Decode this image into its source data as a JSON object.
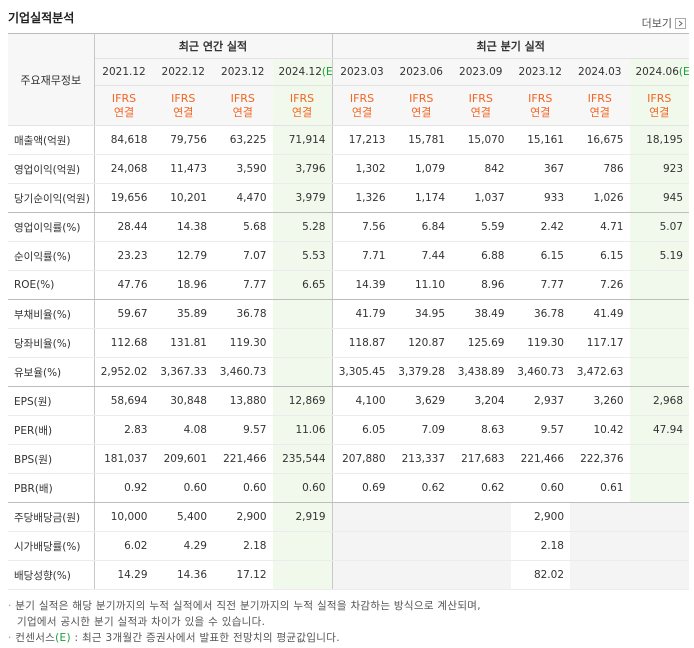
{
  "header": {
    "title": "기업실적분석",
    "more": "더보기"
  },
  "table": {
    "row_header": "주요재무정보",
    "groups": [
      {
        "label": "최근 연간 실적",
        "columns": [
          {
            "period": "2021.12",
            "basis": [
              "IFRS",
              "연결"
            ]
          },
          {
            "period": "2022.12",
            "basis": [
              "IFRS",
              "연결"
            ]
          },
          {
            "period": "2023.12",
            "basis": [
              "IFRS",
              "연결"
            ]
          },
          {
            "period": "2024.12",
            "estimate": "(E)",
            "basis": [
              "IFRS",
              "연결"
            ]
          }
        ]
      },
      {
        "label": "최근 분기 실적",
        "columns": [
          {
            "period": "2023.03",
            "basis": [
              "IFRS",
              "연결"
            ]
          },
          {
            "period": "2023.06",
            "basis": [
              "IFRS",
              "연결"
            ]
          },
          {
            "period": "2023.09",
            "basis": [
              "IFRS",
              "연결"
            ]
          },
          {
            "period": "2023.12",
            "basis": [
              "IFRS",
              "연결"
            ]
          },
          {
            "period": "2024.03",
            "basis": [
              "IFRS",
              "연결"
            ]
          },
          {
            "period": "2024.06",
            "estimate": "(E)",
            "basis": [
              "IFRS",
              "연결"
            ]
          }
        ]
      }
    ],
    "rows": [
      {
        "label": "매출액(억원)",
        "values": [
          "84,618",
          "79,756",
          "63,225",
          "71,914",
          "17,213",
          "15,781",
          "15,070",
          "15,161",
          "16,675",
          "18,195"
        ]
      },
      {
        "label": "영업이익(억원)",
        "values": [
          "24,068",
          "11,473",
          "3,590",
          "3,796",
          "1,302",
          "1,079",
          "842",
          "367",
          "786",
          "923"
        ]
      },
      {
        "label": "당기순이익(억원)",
        "values": [
          "19,656",
          "10,201",
          "4,470",
          "3,979",
          "1,326",
          "1,174",
          "1,037",
          "933",
          "1,026",
          "945"
        ]
      },
      {
        "label": "영업이익률(%)",
        "values": [
          "28.44",
          "14.38",
          "5.68",
          "5.28",
          "7.56",
          "6.84",
          "5.59",
          "2.42",
          "4.71",
          "5.07"
        ]
      },
      {
        "label": "순이익률(%)",
        "values": [
          "23.23",
          "12.79",
          "7.07",
          "5.53",
          "7.71",
          "7.44",
          "6.88",
          "6.15",
          "6.15",
          "5.19"
        ]
      },
      {
        "label": "ROE(%)",
        "values": [
          "47.76",
          "18.96",
          "7.77",
          "6.65",
          "14.39",
          "11.10",
          "8.96",
          "7.77",
          "7.26",
          null
        ]
      },
      {
        "label": "부채비율(%)",
        "values": [
          "59.67",
          "35.89",
          "36.78",
          null,
          "41.79",
          "34.95",
          "38.49",
          "36.78",
          "41.49",
          null
        ]
      },
      {
        "label": "당좌비율(%)",
        "values": [
          "112.68",
          "131.81",
          "119.30",
          null,
          "118.87",
          "120.87",
          "125.69",
          "119.30",
          "117.17",
          null
        ]
      },
      {
        "label": "유보율(%)",
        "values": [
          "2,952.02",
          "3,367.33",
          "3,460.73",
          null,
          "3,305.45",
          "3,379.28",
          "3,438.89",
          "3,460.73",
          "3,472.63",
          null
        ]
      },
      {
        "label": "EPS(원)",
        "values": [
          "58,694",
          "30,848",
          "13,880",
          "12,869",
          "4,100",
          "3,629",
          "3,204",
          "2,937",
          "3,260",
          "2,968"
        ]
      },
      {
        "label": "PER(배)",
        "values": [
          "2.83",
          "4.08",
          "9.57",
          "11.06",
          "6.05",
          "7.09",
          "8.63",
          "9.57",
          "10.42",
          "47.94"
        ]
      },
      {
        "label": "BPS(원)",
        "values": [
          "181,037",
          "209,601",
          "221,466",
          "235,544",
          "207,880",
          "213,337",
          "217,683",
          "221,466",
          "222,376",
          null
        ]
      },
      {
        "label": "PBR(배)",
        "values": [
          "0.92",
          "0.60",
          "0.60",
          "0.60",
          "0.69",
          "0.62",
          "0.62",
          "0.60",
          "0.61",
          null
        ]
      },
      {
        "label": "주당배당금(원)",
        "values": [
          "10,000",
          "5,400",
          "2,900",
          "2,919",
          null,
          null,
          null,
          "2,900",
          null,
          null
        ]
      },
      {
        "label": "시가배당률(%)",
        "values": [
          "6.02",
          "4.29",
          "2.18",
          null,
          null,
          null,
          null,
          "2.18",
          null,
          null
        ]
      },
      {
        "label": "배당성향(%)",
        "values": [
          "14.29",
          "14.36",
          "17.12",
          null,
          null,
          null,
          null,
          "82.02",
          null,
          null
        ]
      }
    ]
  },
  "notes": [
    {
      "lines": [
        "분기 실적은 해당 분기까지의 누적 실적에서 직전 분기까지의 누적 실적을 차감하는 방식으로 계산되며,",
        "기업에서 공시한 분기 실적과 차이가 있을 수 있습니다."
      ]
    },
    {
      "before": "컨센서스",
      "estimate": "(E)",
      "after": " : 최근 3개월간 증권사에서 발표한 전망치의 평균값입니다."
    }
  ]
}
